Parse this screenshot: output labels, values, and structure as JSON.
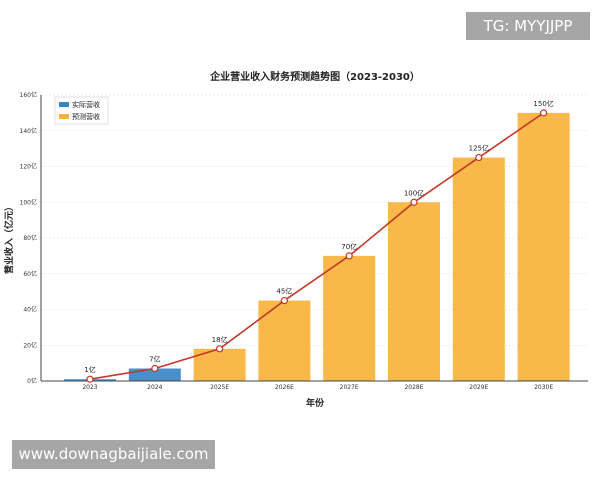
{
  "watermarks": {
    "top": "TG: MYYJJPP",
    "bottom": "www.downagbaijiale.com"
  },
  "chart_data": {
    "type": "bar",
    "title": "企业营业收入财务预测趋势图（2023-2030）",
    "xlabel": "年份",
    "ylabel": "营业收入（亿元）",
    "categories": [
      "2023",
      "2024",
      "2025E",
      "2026E",
      "2027E",
      "2028E",
      "2029E",
      "2030E"
    ],
    "ylim": [
      0,
      160
    ],
    "yticks": [
      0,
      20,
      40,
      60,
      80,
      100,
      120,
      140,
      160
    ],
    "ytick_labels": [
      "0亿",
      "20亿",
      "40亿",
      "60亿",
      "80亿",
      "100亿",
      "120亿",
      "140亿",
      "160亿"
    ],
    "grid": true,
    "legend_position": "top-left",
    "series": [
      {
        "name": "实际营收",
        "color": "#3a86c4",
        "values": [
          1,
          7,
          null,
          null,
          null,
          null,
          null,
          null
        ]
      },
      {
        "name": "预测营收",
        "color": "#f7b23b",
        "values": [
          null,
          null,
          18,
          45,
          70,
          100,
          125,
          150
        ]
      }
    ],
    "trend_line": {
      "color": "#c0392b",
      "values": [
        1,
        7,
        18,
        45,
        70,
        100,
        125,
        150
      ]
    },
    "data_labels": [
      "1亿",
      "7亿",
      "18亿",
      "45亿",
      "70亿",
      "100亿",
      "125亿",
      "150亿"
    ]
  }
}
